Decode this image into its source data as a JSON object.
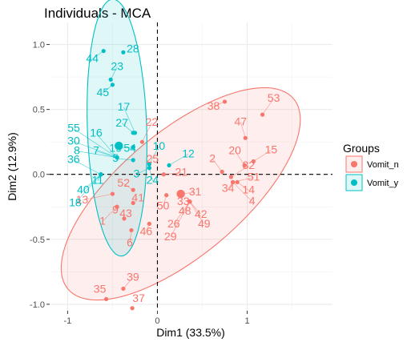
{
  "chart_data": {
    "type": "scatter",
    "title": "Individuals - MCA",
    "xlabel": "Dim1 (33.5%)",
    "ylabel": "Dim2 (12.9%)",
    "xlim": [
      -1.2,
      1.95
    ],
    "ylim": [
      -1.05,
      1.17
    ],
    "x_ticks": [
      -1,
      0,
      1
    ],
    "x_tick_labels": [
      "-1",
      "0",
      "1"
    ],
    "y_ticks": [
      -1.0,
      -0.5,
      0.0,
      0.5,
      1.0
    ],
    "y_tick_labels": [
      "-1.0",
      "-0.5",
      "0.0",
      "0.5",
      "1.0"
    ],
    "grid": true,
    "reference_lines": {
      "x": 0,
      "y": 0,
      "style": "dashed"
    },
    "legend": {
      "title": "Groups",
      "position": "right",
      "entries": [
        "Vomit_n",
        "Vomit_y"
      ]
    },
    "series": [
      {
        "name": "Vomit_n",
        "color": "#F8766D",
        "centroid": {
          "x": 0.26,
          "y": -0.15
        },
        "ellipse": {
          "cx": 0.26,
          "cy": -0.15,
          "rx": 1.47,
          "ry": 0.53,
          "angle_deg": 27
        },
        "points": [
          {
            "label": "1",
            "x": -0.45,
            "y": -0.25
          },
          {
            "label": "2",
            "x": 0.72,
            "y": 0.02
          },
          {
            "label": "6",
            "x": -0.29,
            "y": -0.43
          },
          {
            "label": "9",
            "x": -0.45,
            "y": -0.25
          },
          {
            "label": "13",
            "x": -0.5,
            "y": -0.15
          },
          {
            "label": "14",
            "x": 0.89,
            "y": -0.06
          },
          {
            "label": "15",
            "x": 1.07,
            "y": 0.1
          },
          {
            "label": "20",
            "x": 0.97,
            "y": 0.07
          },
          {
            "label": "21",
            "x": 0.07,
            "y": 0.0
          },
          {
            "label": "22",
            "x": -0.17,
            "y": 0.25
          },
          {
            "label": "25",
            "x": -0.09,
            "y": 0.08
          },
          {
            "label": "26",
            "x": 0.36,
            "y": -0.21
          },
          {
            "label": "29",
            "x": 0.36,
            "y": -0.21
          },
          {
            "label": "31",
            "x": 0.26,
            "y": -0.15
          },
          {
            "label": "32",
            "x": 0.82,
            "y": -0.02
          },
          {
            "label": "33",
            "x": 0.36,
            "y": -0.21
          },
          {
            "label": "34",
            "x": 0.84,
            "y": -0.06
          },
          {
            "label": "35",
            "x": -0.57,
            "y": -0.96
          },
          {
            "label": "37",
            "x": -0.28,
            "y": -1.03
          },
          {
            "label": "38",
            "x": 0.75,
            "y": 0.56
          },
          {
            "label": "39",
            "x": -0.38,
            "y": -0.88
          },
          {
            "label": "41",
            "x": -0.27,
            "y": -0.22
          },
          {
            "label": "42",
            "x": 0.36,
            "y": -0.21
          },
          {
            "label": "43",
            "x": -0.37,
            "y": -0.34
          },
          {
            "label": "46",
            "x": -0.09,
            "y": -0.38
          },
          {
            "label": "47",
            "x": 0.98,
            "y": 0.28
          },
          {
            "label": "48",
            "x": 0.36,
            "y": -0.21
          },
          {
            "label": "49",
            "x": 0.36,
            "y": -0.21
          },
          {
            "label": "50",
            "x": 0.1,
            "y": -0.16
          },
          {
            "label": "51",
            "x": 0.84,
            "y": -0.06
          },
          {
            "label": "52",
            "x": -0.27,
            "y": -0.12
          },
          {
            "label": "53",
            "x": 1.17,
            "y": 0.46
          },
          {
            "label": "4",
            "x": 0.84,
            "y": -0.06
          }
        ]
      },
      {
        "name": "Vomit_y",
        "color": "#00BFC4",
        "centroid": {
          "x": -0.43,
          "y": 0.22
        },
        "ellipse": {
          "cx": -0.45,
          "cy": 0.36,
          "rx": 0.99,
          "ry": 0.33,
          "angle_deg": -87
        },
        "points": [
          {
            "label": "3",
            "x": -0.09,
            "y": 0.05
          },
          {
            "label": "5",
            "x": -0.27,
            "y": 0.11
          },
          {
            "label": "7",
            "x": -0.45,
            "y": 0.13
          },
          {
            "label": "8",
            "x": -0.45,
            "y": 0.13
          },
          {
            "label": "10",
            "x": -0.09,
            "y": 0.08
          },
          {
            "label": "11",
            "x": -0.63,
            "y": 0.0
          },
          {
            "label": "12",
            "x": 0.13,
            "y": 0.07
          },
          {
            "label": "16",
            "x": -0.45,
            "y": 0.13
          },
          {
            "label": "17",
            "x": -0.25,
            "y": 0.32
          },
          {
            "label": "18",
            "x": -0.63,
            "y": 0.0
          },
          {
            "label": "19",
            "x": -0.27,
            "y": 0.21
          },
          {
            "label": "23",
            "x": -0.52,
            "y": 0.73
          },
          {
            "label": "24",
            "x": -0.09,
            "y": 0.05
          },
          {
            "label": "27",
            "x": -0.27,
            "y": 0.32
          },
          {
            "label": "28",
            "x": -0.38,
            "y": 0.94
          },
          {
            "label": "30",
            "x": -0.45,
            "y": 0.13
          },
          {
            "label": "36",
            "x": -0.63,
            "y": 0.0
          },
          {
            "label": "40",
            "x": -0.63,
            "y": 0.0
          },
          {
            "label": "44",
            "x": -0.6,
            "y": 0.95
          },
          {
            "label": "45",
            "x": -0.5,
            "y": 0.69
          },
          {
            "label": "54",
            "x": -0.27,
            "y": 0.21
          },
          {
            "label": "55",
            "x": -0.45,
            "y": 0.13
          }
        ]
      }
    ]
  }
}
